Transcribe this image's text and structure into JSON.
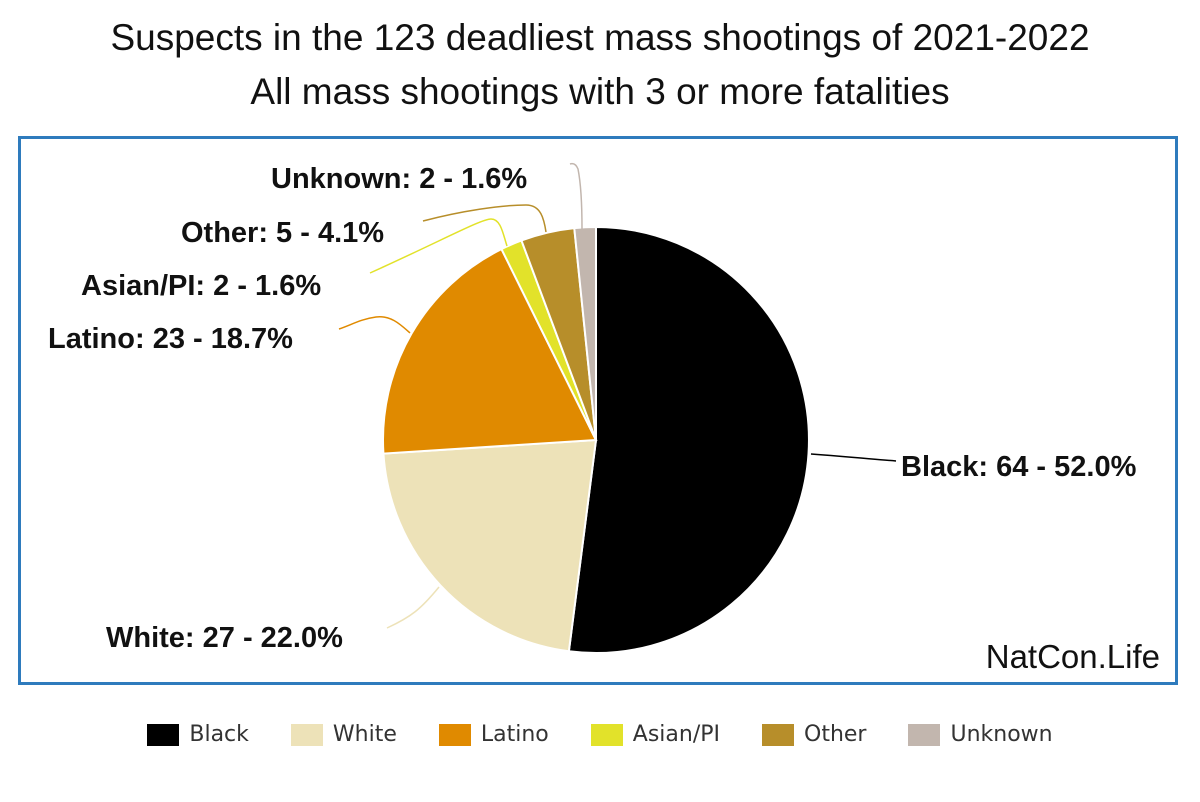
{
  "chart_data": {
    "type": "pie",
    "title": "Suspects in the 123 deadliest mass shootings of 2021-2022",
    "subtitle": "All mass shootings with 3 or more fatalities",
    "categories": [
      "Black",
      "White",
      "Latino",
      "Asian/PI",
      "Other",
      "Unknown"
    ],
    "values": [
      64,
      27,
      23,
      2,
      5,
      2
    ],
    "labels": [
      "Black: 64 - 52.0%",
      "White: 27 - 22.0%",
      "Latino: 23 - 18.7%",
      "Asian/PI: 2 - 1.6%",
      "Other: 5 - 4.1%",
      "Unknown: 2 - 1.6%"
    ],
    "colors": [
      "#000000",
      "#ede2b8",
      "#e08a00",
      "#e2e22a",
      "#b78e2a",
      "#c2b6ae"
    ],
    "legend_position": "bottom",
    "start_angle": "12 o'clock, clockwise"
  },
  "watermark": "NatCon.Life"
}
